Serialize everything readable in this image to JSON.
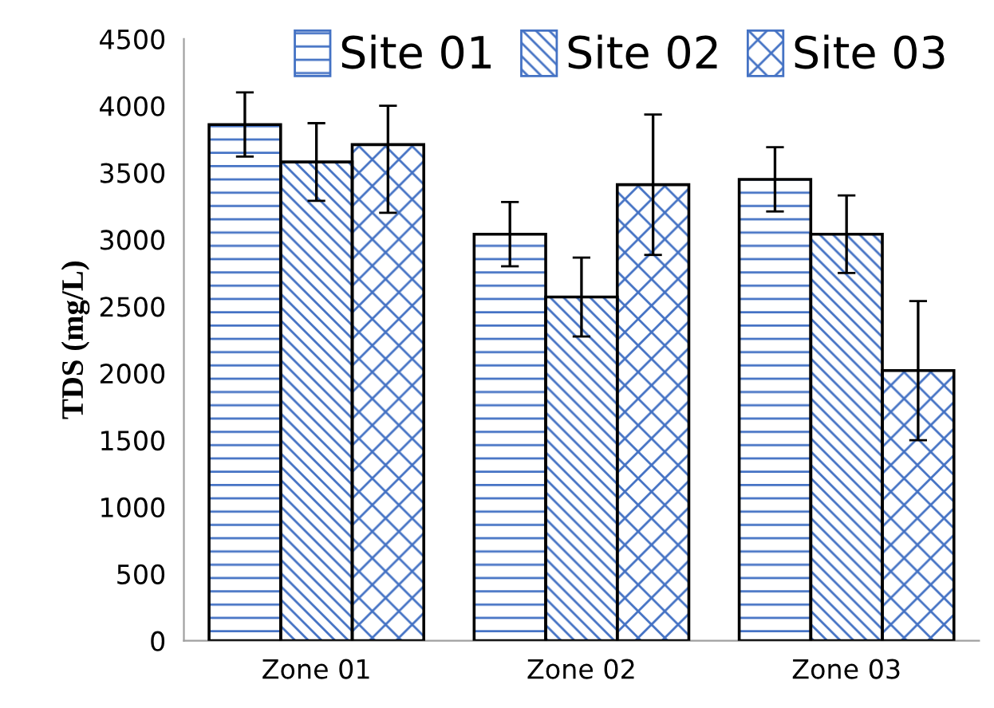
{
  "chart_data": {
    "type": "bar",
    "ylabel": "TDS (mg/L)",
    "categories": [
      "Zone 01",
      "Zone 02",
      "Zone 03"
    ],
    "series": [
      {
        "name": "Site 01",
        "color": "#4472c4",
        "values": [
          3860,
          3040,
          3450
        ],
        "errors": [
          240,
          240,
          240
        ]
      },
      {
        "name": "Site 02",
        "color": "#4472c4",
        "values": [
          3580,
          2570,
          3040
        ],
        "errors": [
          290,
          295,
          290
        ]
      },
      {
        "name": "Site 03",
        "color": "#4472c4",
        "values": [
          3710,
          3410,
          2020
        ],
        "errors": [
          [
            3200,
            4000
          ],
          525,
          520
        ]
      }
    ],
    "ylim": [
      0,
      4500
    ],
    "yticks": [
      0,
      500,
      1000,
      1500,
      2000,
      2500,
      3000,
      3500,
      4000,
      4500
    ],
    "grid": false,
    "legend": "top"
  }
}
